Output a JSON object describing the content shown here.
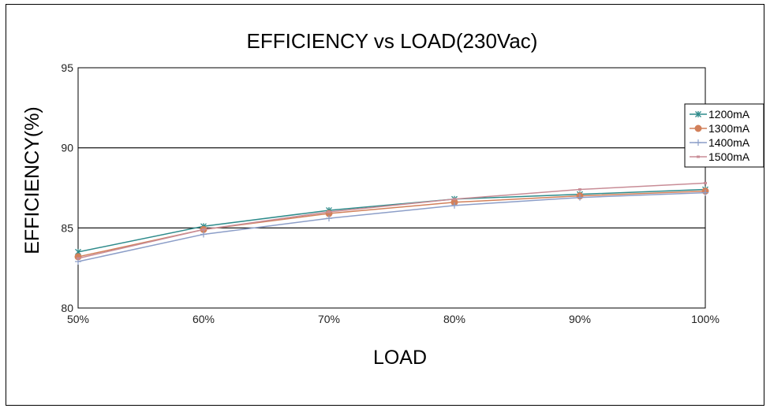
{
  "chart_data": {
    "type": "line",
    "title": "EFFICIENCY vs LOAD(230Vac)",
    "xlabel": "LOAD",
    "ylabel": "EFFICIENCY(%)",
    "categories": [
      "50%",
      "60%",
      "70%",
      "80%",
      "90%",
      "100%"
    ],
    "ylim": [
      80,
      95
    ],
    "yticks": [
      80,
      85,
      90,
      95
    ],
    "grid": "horizontal at 85 and 90",
    "legend_position": "right",
    "series": [
      {
        "name": "1200mA",
        "color": "#2e8b8b",
        "marker": "star",
        "values": [
          83.5,
          85.1,
          86.1,
          86.8,
          87.1,
          87.4
        ]
      },
      {
        "name": "1300mA",
        "color": "#d2805a",
        "marker": "circle",
        "values": [
          83.2,
          84.9,
          85.9,
          86.6,
          87.0,
          87.3
        ]
      },
      {
        "name": "1400mA",
        "color": "#8c9ec8",
        "marker": "plus",
        "values": [
          82.9,
          84.6,
          85.6,
          86.4,
          86.9,
          87.2
        ]
      },
      {
        "name": "1500mA",
        "color": "#c88c96",
        "marker": "dot",
        "values": [
          83.1,
          84.9,
          86.0,
          86.8,
          87.4,
          87.8
        ]
      }
    ]
  }
}
